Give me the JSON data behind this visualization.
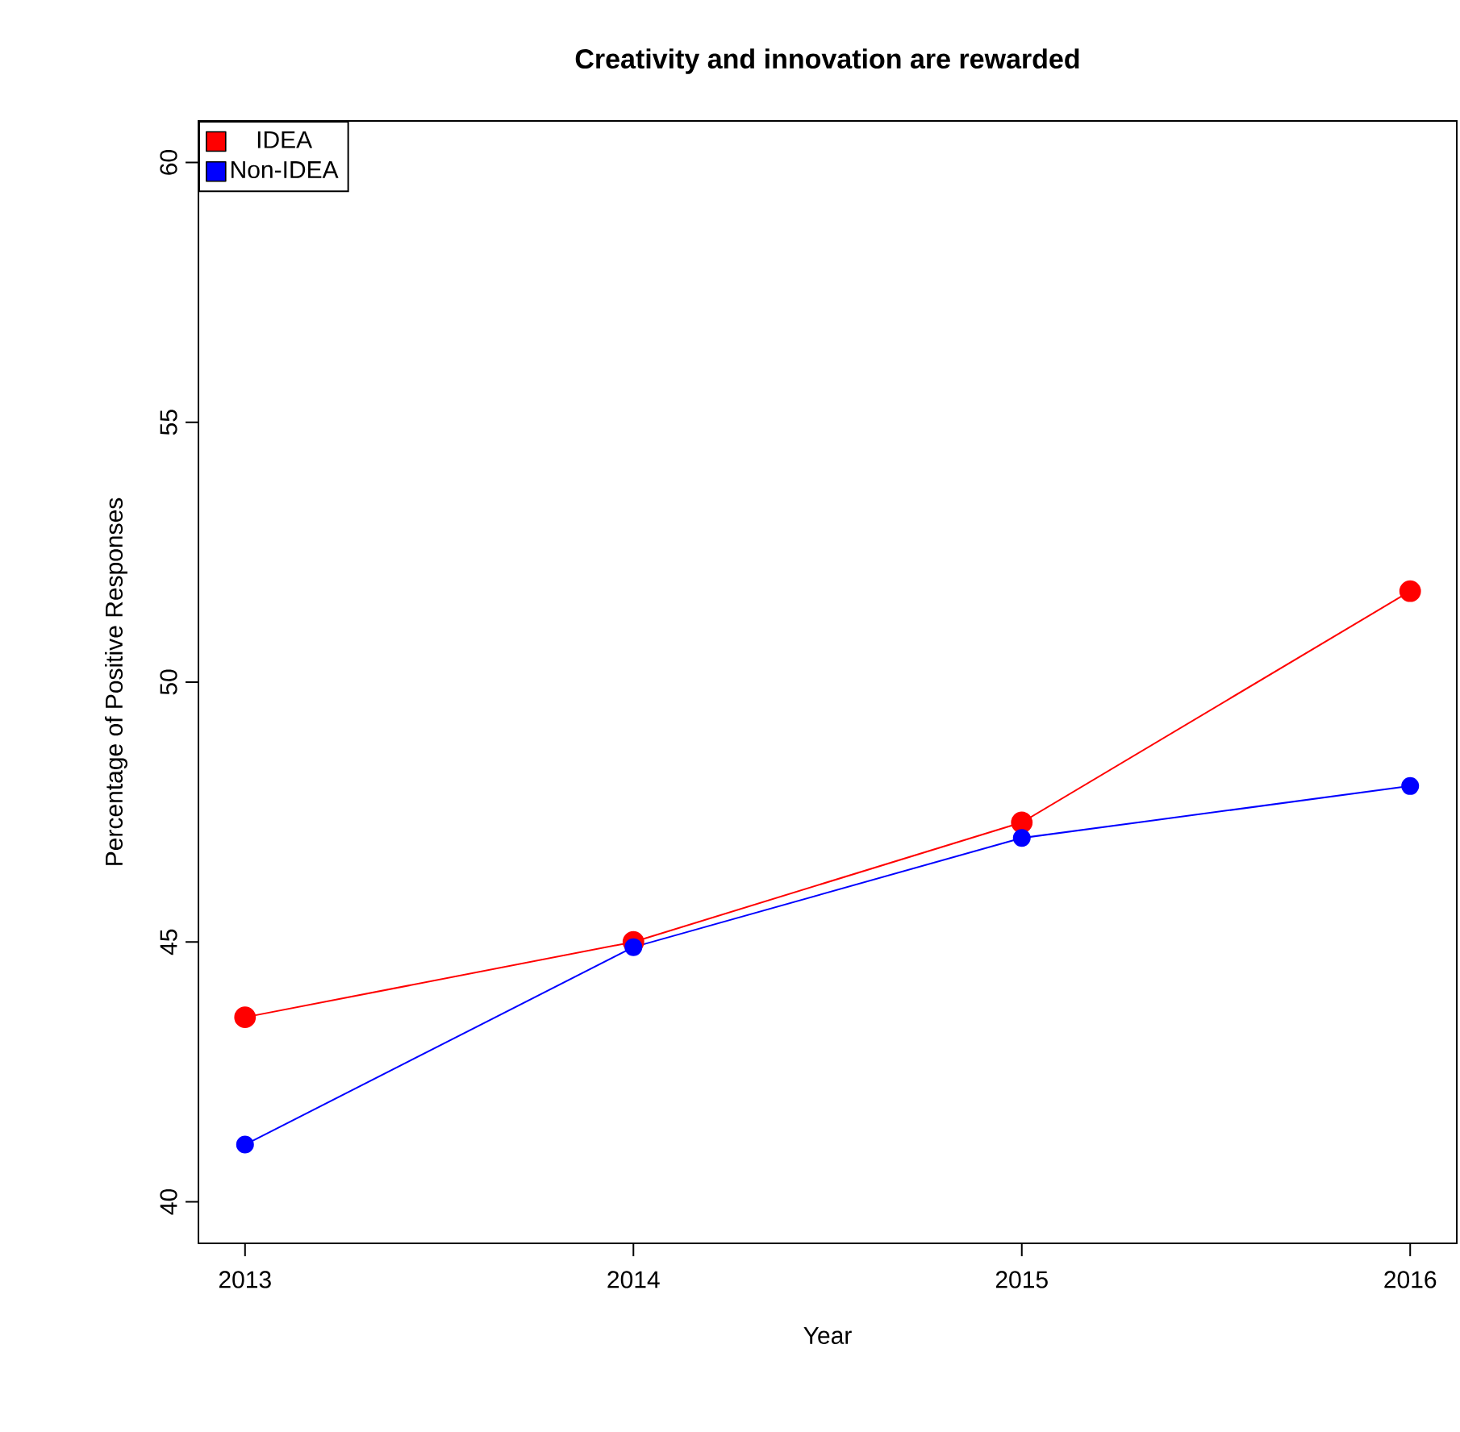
{
  "chart_data": {
    "type": "line",
    "title": "Creativity and innovation are rewarded",
    "xlabel": "Year",
    "ylabel": "Percentage of Positive Responses",
    "x": [
      2013,
      2014,
      2015,
      2016
    ],
    "series": [
      {
        "name": "IDEA",
        "color": "#ff0000",
        "values": [
          43.55,
          45.0,
          47.3,
          51.75
        ]
      },
      {
        "name": "Non-IDEA",
        "color": "#0000ff",
        "values": [
          41.1,
          44.9,
          47.0,
          48.0
        ]
      }
    ],
    "xlim": [
      2012.88,
      2016.12
    ],
    "ylim": [
      39.2,
      60.8
    ],
    "xticks": [
      2013,
      2014,
      2015,
      2016
    ],
    "yticks": [
      40,
      45,
      50,
      55,
      60
    ],
    "legend": "top left",
    "marker": "circle",
    "line_style": "solid",
    "grid": false
  }
}
